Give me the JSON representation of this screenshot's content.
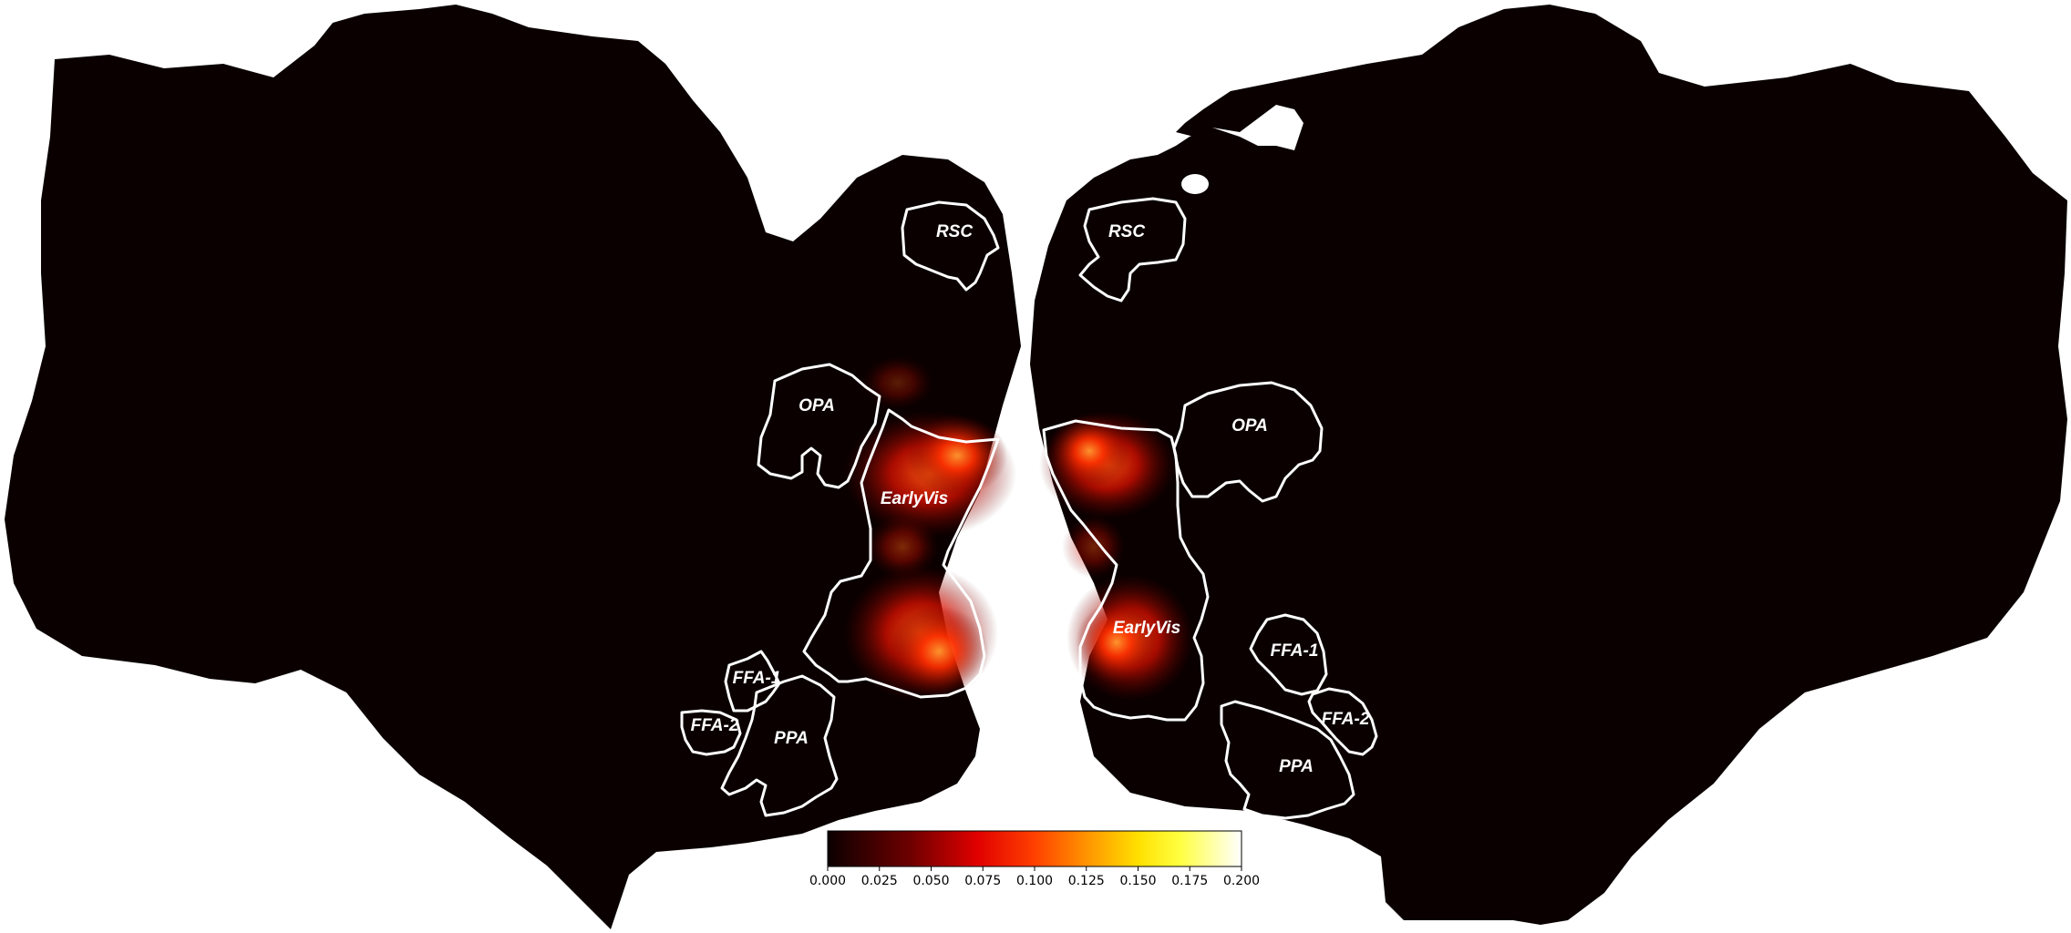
{
  "figure": {
    "hemispheres": [
      "left",
      "right"
    ],
    "rois": {
      "left": [
        {
          "key": "rsc",
          "label": "RSC"
        },
        {
          "key": "opa",
          "label": "OPA"
        },
        {
          "key": "earlyvis",
          "label": "EarlyVis"
        },
        {
          "key": "ffa1",
          "label": "FFA-1"
        },
        {
          "key": "ffa2",
          "label": "FFA-2"
        },
        {
          "key": "ppa",
          "label": "PPA"
        }
      ],
      "right": [
        {
          "key": "rsc",
          "label": "RSC"
        },
        {
          "key": "opa",
          "label": "OPA"
        },
        {
          "key": "earlyvis",
          "label": "EarlyVis"
        },
        {
          "key": "ffa1",
          "label": "FFA-1"
        },
        {
          "key": "ffa2",
          "label": "FFA-2"
        },
        {
          "key": "ppa",
          "label": "PPA"
        }
      ]
    },
    "colorbar": {
      "colormap": "hot",
      "min": 0.0,
      "max": 0.2,
      "ticks": [
        "0.000",
        "0.025",
        "0.050",
        "0.075",
        "0.100",
        "0.125",
        "0.150",
        "0.175",
        "0.200"
      ]
    },
    "colors": {
      "background": "#0a0000",
      "roi_outline": "#ffffff",
      "activation_low": "#8b0000",
      "activation_high": "#ff4a00"
    }
  }
}
